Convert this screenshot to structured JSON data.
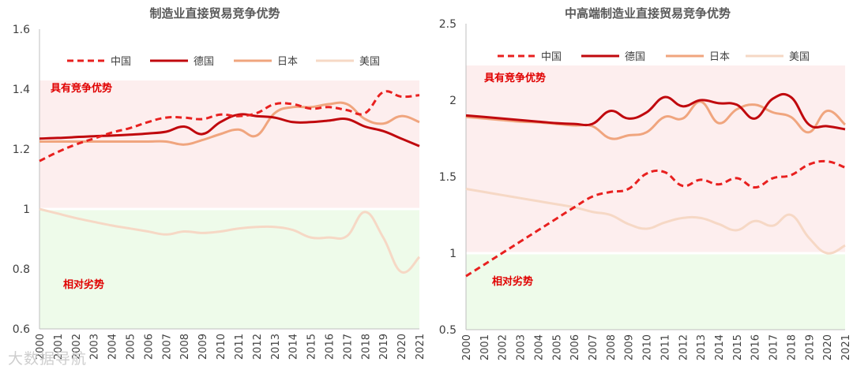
{
  "watermark": "大数据导航",
  "chart_data": [
    {
      "type": "line",
      "title": "制造业直接贸易竞争优势",
      "categories": [
        "2000",
        "2001",
        "2002",
        "2003",
        "2004",
        "2005",
        "2006",
        "2007",
        "2008",
        "2009",
        "2010",
        "2011",
        "2012",
        "2013",
        "2014",
        "2015",
        "2016",
        "2017",
        "2018",
        "2019",
        "2020",
        "2021"
      ],
      "ylim": [
        0.6,
        1.6
      ],
      "yticks": [
        "0.6",
        "0.8",
        "1",
        "1.2",
        "1.4",
        "1.6"
      ],
      "threshold": 1.0,
      "band_above_label": "具有竞争优势",
      "band_below_label": "相对劣势",
      "legend": [
        "中国",
        "德国",
        "日本",
        "美国"
      ],
      "series": [
        {
          "name": "中国",
          "color": "#e8201f",
          "dash": true,
          "width": 3,
          "values": [
            1.16,
            1.19,
            1.215,
            1.235,
            1.255,
            1.27,
            1.29,
            1.305,
            1.305,
            1.3,
            1.315,
            1.31,
            1.32,
            1.35,
            1.35,
            1.335,
            1.34,
            1.33,
            1.32,
            1.39,
            1.375,
            1.38
          ]
        },
        {
          "name": "德国",
          "color": "#c0080d",
          "dash": false,
          "width": 3,
          "values": [
            1.235,
            1.237,
            1.24,
            1.243,
            1.245,
            1.248,
            1.252,
            1.258,
            1.275,
            1.25,
            1.29,
            1.315,
            1.31,
            1.305,
            1.29,
            1.29,
            1.295,
            1.3,
            1.275,
            1.26,
            1.235,
            1.21
          ]
        },
        {
          "name": "日本",
          "color": "#f0a57e",
          "dash": false,
          "width": 3,
          "values": [
            1.225,
            1.225,
            1.225,
            1.225,
            1.225,
            1.225,
            1.225,
            1.225,
            1.215,
            1.23,
            1.25,
            1.265,
            1.245,
            1.32,
            1.34,
            1.34,
            1.35,
            1.35,
            1.3,
            1.285,
            1.31,
            1.29
          ]
        },
        {
          "name": "美国",
          "color": "#f6d8c5",
          "dash": false,
          "width": 3,
          "values": [
            1.0,
            0.985,
            0.97,
            0.957,
            0.945,
            0.935,
            0.925,
            0.915,
            0.925,
            0.92,
            0.925,
            0.935,
            0.94,
            0.94,
            0.93,
            0.905,
            0.905,
            0.91,
            0.99,
            0.905,
            0.79,
            0.84
          ]
        }
      ]
    },
    {
      "type": "line",
      "title": "中高端制造业直接贸易竞争优势",
      "categories": [
        "2000",
        "2001",
        "2002",
        "2003",
        "2004",
        "2005",
        "2006",
        "2007",
        "2008",
        "2009",
        "2010",
        "2011",
        "2012",
        "2013",
        "2014",
        "2015",
        "2016",
        "2017",
        "2018",
        "2019",
        "2020",
        "2021"
      ],
      "ylim": [
        0.5,
        2.5
      ],
      "yticks": [
        "0.5",
        "1",
        "1.5",
        "2",
        "2.5"
      ],
      "threshold": 1.0,
      "band_above_label": "具有竞争优势",
      "band_below_label": "相对劣势",
      "legend": [
        "中国",
        "德国",
        "日本",
        "美国"
      ],
      "series": [
        {
          "name": "中国",
          "color": "#e8201f",
          "dash": true,
          "width": 3,
          "values": [
            0.85,
            0.925,
            1.0,
            1.075,
            1.15,
            1.225,
            1.3,
            1.37,
            1.4,
            1.42,
            1.52,
            1.53,
            1.44,
            1.48,
            1.45,
            1.49,
            1.43,
            1.49,
            1.51,
            1.58,
            1.6,
            1.56
          ]
        },
        {
          "name": "德国",
          "color": "#c0080d",
          "dash": false,
          "width": 3,
          "values": [
            1.9,
            1.89,
            1.88,
            1.87,
            1.86,
            1.85,
            1.845,
            1.845,
            1.93,
            1.88,
            1.92,
            2.02,
            1.96,
            2.0,
            1.98,
            1.97,
            1.88,
            2.01,
            2.02,
            1.84,
            1.83,
            1.81
          ]
        },
        {
          "name": "日本",
          "color": "#f0a57e",
          "dash": false,
          "width": 3,
          "values": [
            1.89,
            1.88,
            1.87,
            1.86,
            1.855,
            1.845,
            1.835,
            1.83,
            1.75,
            1.77,
            1.79,
            1.89,
            1.88,
            1.99,
            1.85,
            1.94,
            1.97,
            1.92,
            1.89,
            1.79,
            1.93,
            1.84
          ]
        },
        {
          "name": "美国",
          "color": "#f6d8c5",
          "dash": false,
          "width": 3,
          "values": [
            1.42,
            1.4,
            1.38,
            1.36,
            1.34,
            1.32,
            1.3,
            1.27,
            1.25,
            1.19,
            1.16,
            1.2,
            1.23,
            1.23,
            1.19,
            1.15,
            1.21,
            1.18,
            1.25,
            1.1,
            1.0,
            1.05
          ]
        }
      ]
    }
  ]
}
